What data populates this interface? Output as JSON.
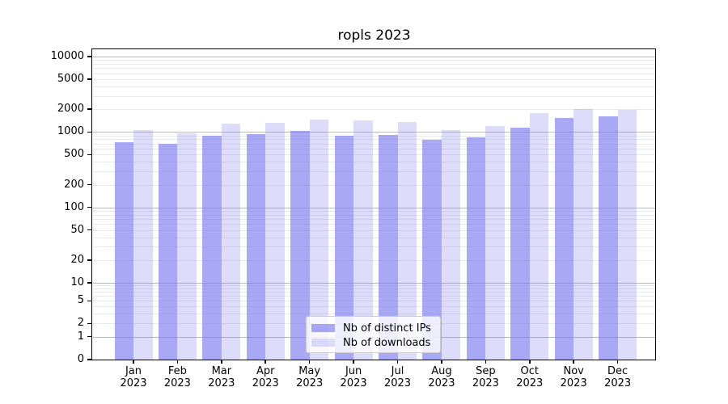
{
  "title": "ropls 2023",
  "chart_data": {
    "type": "bar",
    "title": "ropls 2023",
    "months": [
      "Jan",
      "Feb",
      "Mar",
      "Apr",
      "May",
      "Jun",
      "Jul",
      "Aug",
      "Sep",
      "Oct",
      "Nov",
      "Dec"
    ],
    "year": "2023",
    "x_tick_labels": [
      [
        "Jan",
        "2023"
      ],
      [
        "Feb",
        "2023"
      ],
      [
        "Mar",
        "2023"
      ],
      [
        "Apr",
        "2023"
      ],
      [
        "May",
        "2023"
      ],
      [
        "Jun",
        "2023"
      ],
      [
        "Jul",
        "2023"
      ],
      [
        "Aug",
        "2023"
      ],
      [
        "Sep",
        "2023"
      ],
      [
        "Oct",
        "2023"
      ],
      [
        "Nov",
        "2023"
      ],
      [
        "Dec",
        "2023"
      ]
    ],
    "series": [
      {
        "name": "Nb of distinct IPs",
        "color": "#7a7af0",
        "alpha": 0.65,
        "values": [
          735,
          695,
          900,
          935,
          1040,
          900,
          905,
          780,
          850,
          1130,
          1520,
          1610
        ]
      },
      {
        "name": "Nb of downloads",
        "color": "#7a7af0",
        "alpha": 0.26,
        "values": [
          1050,
          960,
          1280,
          1330,
          1460,
          1410,
          1355,
          1060,
          1210,
          1790,
          2000,
          1980
        ]
      }
    ],
    "y_scale": "symlog",
    "y_ticks": [
      10000,
      5000,
      2000,
      1000,
      500,
      200,
      100,
      50,
      20,
      10,
      5,
      2,
      1,
      0
    ],
    "ylim": [
      0,
      12500
    ],
    "grid": true,
    "legend_position": "lower center",
    "colors": {
      "grid_major": "#bbbbbb",
      "grid_minor": "#e9e9e9",
      "axis": "#000000",
      "legend_border": "#cccccc"
    }
  }
}
